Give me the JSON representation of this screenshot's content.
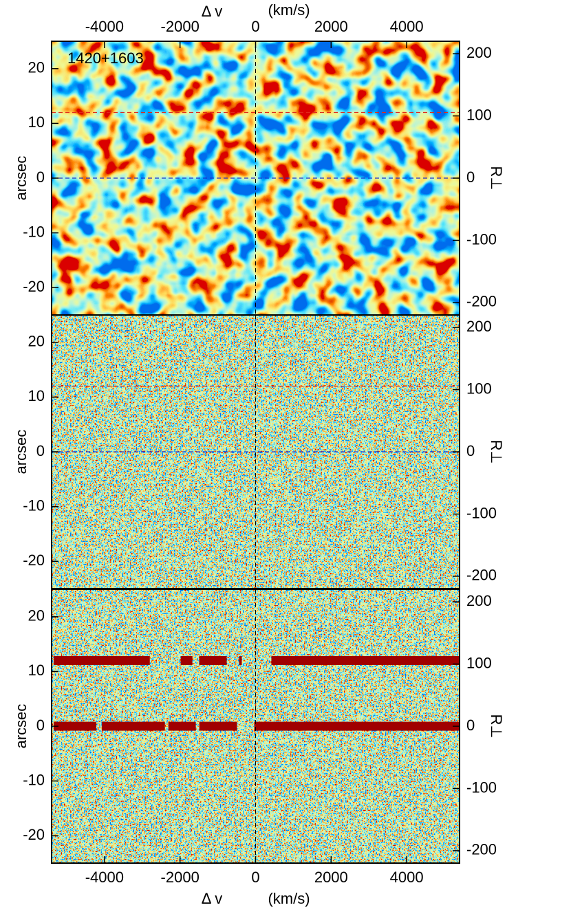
{
  "chart_data": [
    {
      "type": "heatmap",
      "annotation": "1420+1603",
      "xlabel": "Δ v",
      "xunit": "(km/s)",
      "xaxis": "top",
      "ylabel": "arcsec",
      "y2label": "R⊥",
      "xlim": [
        -5400,
        5400
      ],
      "xticks": [
        -4000,
        -2000,
        0,
        2000,
        4000
      ],
      "ylim": [
        -25,
        25
      ],
      "yticks": [
        -20,
        -10,
        0,
        10,
        20
      ],
      "y2lim": [
        -220,
        220
      ],
      "y2ticks": [
        -200,
        -100,
        0,
        100,
        200
      ],
      "vline": {
        "x": 0,
        "color": "#000000"
      },
      "hlines": [
        {
          "y": 12,
          "color": "#e02a1a"
        },
        {
          "y": 0,
          "color": "#1a30d0"
        }
      ]
    },
    {
      "type": "heatmap",
      "ylabel": "arcsec",
      "y2label": "R⊥",
      "xlim": [
        -5400,
        5400
      ],
      "ylim": [
        -25,
        25
      ],
      "yticks": [
        -20,
        -10,
        0,
        10,
        20
      ],
      "y2lim": [
        -220,
        220
      ],
      "y2ticks": [
        -200,
        -100,
        0,
        100,
        200
      ],
      "vline": {
        "x": 0,
        "color": "#000000"
      },
      "hlines": [
        {
          "y": 12,
          "color": "#e02a1a"
        },
        {
          "y": 0,
          "color": "#1a30d0"
        }
      ]
    },
    {
      "type": "heatmap",
      "xlabel": "Δ v",
      "xunit": "(km/s)",
      "xaxis": "bottom",
      "ylabel": "arcsec",
      "y2label": "R⊥",
      "xlim": [
        -5400,
        5400
      ],
      "xticks": [
        -4000,
        -2000,
        0,
        2000,
        4000
      ],
      "ylim": [
        -25,
        25
      ],
      "yticks": [
        -20,
        -10,
        0,
        10,
        20
      ],
      "y2lim": [
        -220,
        220
      ],
      "y2ticks": [
        -200,
        -100,
        0,
        100,
        200
      ],
      "vline": {
        "x": 0,
        "color": "#000000"
      },
      "bands": [
        {
          "y": 12,
          "color": "#a00000",
          "segments": [
            [
              -5345,
              -2800
            ],
            [
              -1982,
              -1673
            ],
            [
              -1491,
              -764
            ],
            [
              -436,
              -364
            ],
            [
              418,
              5382
            ]
          ]
        },
        {
          "y": 0,
          "color": "#a00000",
          "segments": [
            [
              -5345,
              -4218
            ],
            [
              -4073,
              -2400
            ],
            [
              -2309,
              -1582
            ],
            [
              -1491,
              -491
            ],
            [
              -36,
              5382
            ]
          ]
        }
      ]
    }
  ]
}
